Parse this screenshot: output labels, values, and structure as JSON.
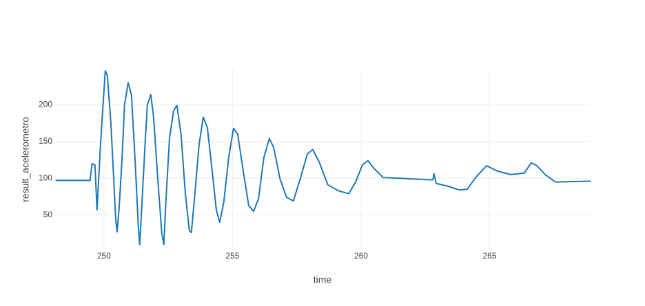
{
  "chart_data": {
    "type": "line",
    "x_label": "time",
    "y_label": "result_acelerometro",
    "xlim": [
      248.1,
      268.9
    ],
    "ylim": [
      1,
      249
    ],
    "xticks": [
      250,
      255,
      260,
      265
    ],
    "yticks": [
      50,
      100,
      150,
      200
    ],
    "grid": true,
    "series": [
      {
        "color": "#1f77b4",
        "x": [
          248.12,
          249.46,
          249.54,
          249.65,
          249.73,
          249.87,
          249.95,
          250.05,
          250.13,
          250.27,
          250.46,
          250.51,
          250.59,
          250.7,
          250.8,
          250.94,
          251.07,
          251.21,
          251.34,
          251.39,
          251.5,
          251.61,
          251.69,
          251.82,
          251.93,
          252.09,
          252.25,
          252.33,
          252.41,
          252.55,
          252.71,
          252.84,
          253.0,
          253.16,
          253.32,
          253.4,
          253.54,
          253.7,
          253.86,
          254.02,
          254.21,
          254.37,
          254.5,
          254.66,
          254.85,
          255.04,
          255.2,
          255.42,
          255.63,
          255.82,
          256.01,
          256.22,
          256.43,
          256.6,
          256.84,
          257.1,
          257.37,
          257.64,
          257.91,
          258.12,
          258.36,
          258.71,
          259.12,
          259.52,
          259.79,
          260.05,
          260.27,
          260.51,
          260.86,
          261.53,
          262.6,
          262.79,
          262.84,
          262.92,
          263.4,
          263.81,
          264.13,
          264.48,
          264.88,
          265.28,
          265.82,
          266.35,
          266.62,
          266.84,
          267.16,
          267.56,
          268.93
        ],
        "values": [
          97,
          97,
          120,
          118,
          57,
          148,
          193,
          246,
          240,
          174,
          43,
          27,
          60,
          125,
          200,
          230,
          213,
          125,
          32,
          10,
          80,
          155,
          200,
          214,
          183,
          100,
          25,
          10,
          70,
          155,
          192,
          199,
          159,
          81,
          29,
          26,
          81,
          146,
          183,
          169,
          109,
          57,
          40,
          67,
          128,
          168,
          160,
          109,
          63,
          55,
          72,
          128,
          154,
          142,
          100,
          74,
          69,
          100,
          133,
          139,
          123,
          91,
          83,
          79,
          95,
          118,
          124,
          113,
          101,
          100,
          98,
          98,
          106,
          93,
          89,
          84,
          85,
          102,
          117,
          110,
          105,
          107,
          121,
          117,
          105,
          95,
          96
        ]
      }
    ]
  }
}
